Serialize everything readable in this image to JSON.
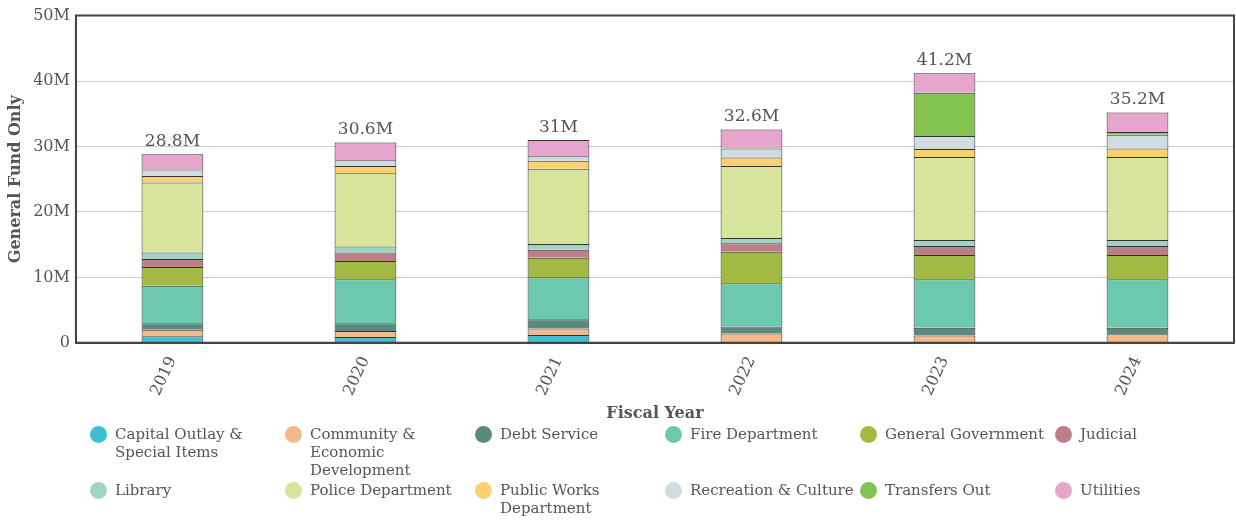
{
  "chart_data": {
    "type": "bar",
    "stacked": true,
    "xlabel": "Fiscal Year",
    "ylabel": "General Fund Only",
    "categories": [
      "2019",
      "2020",
      "2021",
      "2022",
      "2023",
      "2024"
    ],
    "ylim": [
      0,
      50
    ],
    "yticks": [
      0,
      {
        "value": 10,
        "label": "10M"
      },
      {
        "value": 20,
        "label": "20M"
      },
      {
        "value": 30,
        "label": "30M"
      },
      {
        "value": 40,
        "label": "40M"
      },
      {
        "value": 50,
        "label": "50M"
      }
    ],
    "grid": "y",
    "legend": "bottom",
    "totals": [
      "28.8M",
      "30.6M",
      "31M",
      "32.6M",
      "41.2M",
      "35.2M"
    ],
    "series": [
      {
        "name": "Capital Outlay & Special Items",
        "color": "#3fbfcf",
        "values": [
          1.0,
          0.9,
          1.2,
          0,
          0,
          0
        ]
      },
      {
        "name": "Community & Economic Development",
        "color": "#f4b98a",
        "values": [
          1.0,
          0.9,
          1.0,
          1.4,
          1.1,
          1.3
        ]
      },
      {
        "name": "Debt Service",
        "color": "#5a8a7e",
        "values": [
          1.0,
          1.2,
          1.4,
          1.1,
          1.2,
          1.0
        ]
      },
      {
        "name": "Fire Department",
        "color": "#6cc8ae",
        "values": [
          5.7,
          6.7,
          6.4,
          6.6,
          7.4,
          7.4
        ]
      },
      {
        "name": "General Government",
        "color": "#a2b944",
        "values": [
          2.9,
          2.8,
          3.0,
          4.8,
          3.7,
          3.7
        ]
      },
      {
        "name": "Judicial",
        "color": "#bd7f87",
        "values": [
          1.2,
          1.3,
          1.2,
          1.3,
          1.4,
          1.4
        ]
      },
      {
        "name": "Library",
        "color": "#9fd4c3",
        "values": [
          1.0,
          0.9,
          0.9,
          0.8,
          0.9,
          0.9
        ]
      },
      {
        "name": "Police Department",
        "color": "#d6e59a",
        "values": [
          10.7,
          11.2,
          11.5,
          11.0,
          12.7,
          12.7
        ]
      },
      {
        "name": "Public Works Department",
        "color": "#fcd06e",
        "values": [
          1.0,
          1.1,
          1.2,
          1.3,
          1.2,
          1.3
        ]
      },
      {
        "name": "Recreation & Culture",
        "color": "#cfdde0",
        "values": [
          1.0,
          0.9,
          0.7,
          1.4,
          2.0,
          2.1
        ]
      },
      {
        "name": "Transfers Out",
        "color": "#83c451",
        "values": [
          0,
          0,
          0,
          0,
          6.6,
          0.4
        ]
      },
      {
        "name": "Utilities",
        "color": "#e5a5cc",
        "values": [
          2.3,
          2.7,
          2.5,
          2.9,
          3.0,
          3.0
        ]
      }
    ]
  }
}
